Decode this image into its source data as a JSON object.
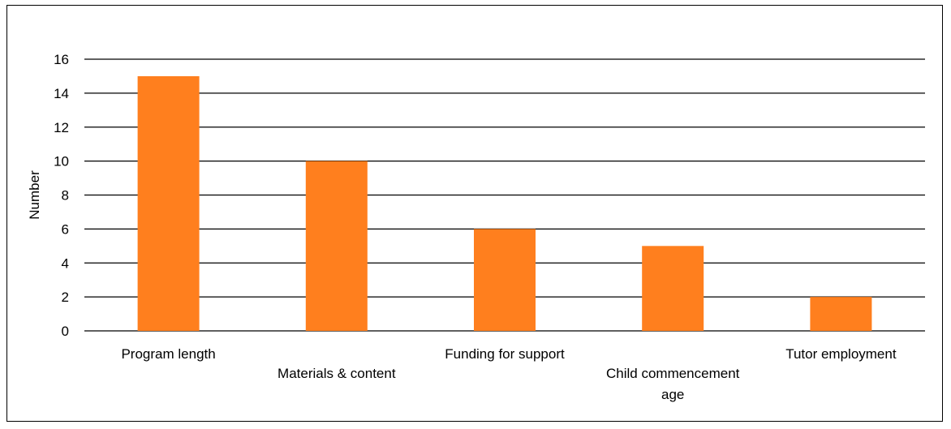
{
  "chart_data": {
    "type": "bar",
    "categories": [
      [
        "Program length"
      ],
      [
        "Materials & content"
      ],
      [
        "Funding for support"
      ],
      [
        "Child commencement",
        "age"
      ],
      [
        "Tutor employment"
      ]
    ],
    "values": [
      15,
      10,
      6,
      5,
      2
    ],
    "title": "",
    "xlabel": "",
    "ylabel": "Number",
    "ylim": [
      0,
      16
    ],
    "yticks": [
      0,
      2,
      4,
      6,
      8,
      10,
      12,
      14,
      16
    ],
    "grid": true,
    "bar_color": "#FF7F1E",
    "legend": "none"
  }
}
